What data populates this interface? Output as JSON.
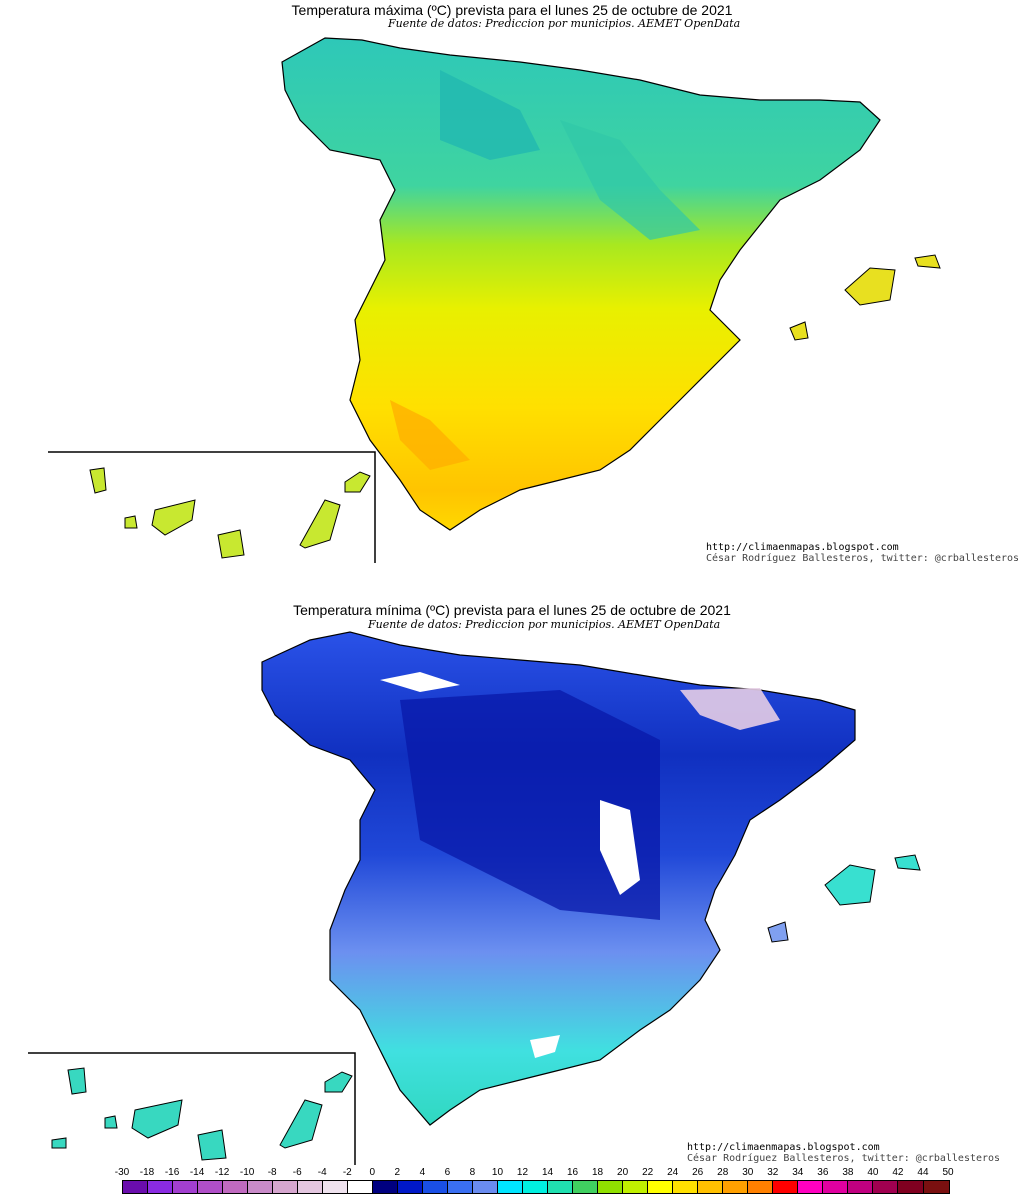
{
  "top_map": {
    "title": "Temperatura máxima (ºC) prevista para el lunes 25 de octubre de 2021",
    "source": "Fuente de datos: Prediccion por municipios. AEMET OpenData",
    "credit_url": "http://climaenmapas.blogspot.com",
    "credit_author": "César Rodríguez Ballesteros, twitter: @crballesteros"
  },
  "bottom_map": {
    "title": "Temperatura mínima (ºC) prevista para el lunes 25 de octubre de 2021",
    "source": "Fuente de datos: Prediccion por municipios. AEMET OpenData",
    "credit_url": "http://climaenmapas.blogspot.com",
    "credit_author": "César Rodríguez Ballesteros, twitter: @crballesteros"
  },
  "legend": {
    "labels": [
      "-30",
      "-18",
      "-16",
      "-14",
      "-12",
      "-10",
      "-8",
      "-6",
      "-4",
      "-2",
      "0",
      "2",
      "4",
      "6",
      "8",
      "10",
      "12",
      "14",
      "16",
      "18",
      "20",
      "22",
      "24",
      "26",
      "28",
      "30",
      "32",
      "34",
      "36",
      "38",
      "40",
      "42",
      "44",
      "50"
    ],
    "colors": [
      "#6a0dad",
      "#8a2be2",
      "#a23fd0",
      "#b04fc8",
      "#c06ac0",
      "#c98bc9",
      "#d6a6cf",
      "#e4c7e0",
      "#efe2ee",
      "#ffffff",
      "#000080",
      "#0018c8",
      "#1a4fe6",
      "#3a6ff2",
      "#6a8cf0",
      "#00e5ff",
      "#00f0e0",
      "#20e0b0",
      "#40d060",
      "#90e000",
      "#c0f000",
      "#ffff00",
      "#ffe000",
      "#ffc000",
      "#ffa000",
      "#ff8000",
      "#ff0000",
      "#ff00c0",
      "#e000a0",
      "#c00080",
      "#a00050",
      "#800020",
      "#7a1010"
    ]
  }
}
